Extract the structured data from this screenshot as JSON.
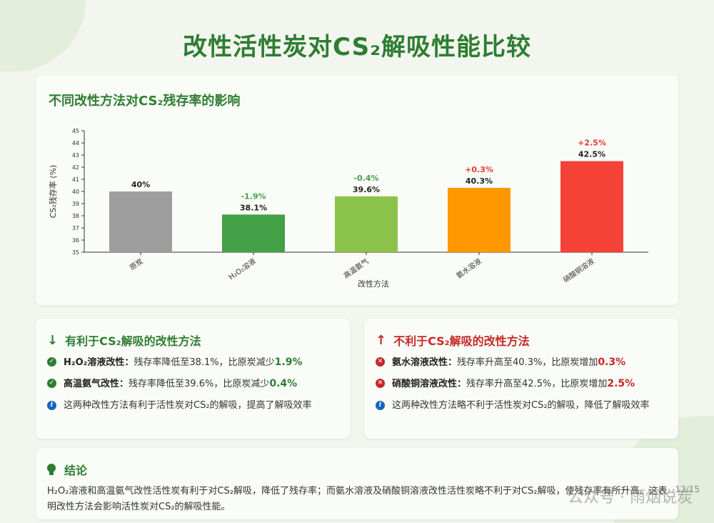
{
  "page_title": "改性活性炭对CS₂解吸性能比较",
  "chart_card": {
    "title": "不同改性方法对CS₂残存率的影响"
  },
  "chart_data": {
    "type": "bar",
    "title": "不同改性方法对CS₂残存率的影响",
    "xlabel": "改性方法",
    "ylabel": "CS₂残存率 (%)",
    "ylim": [
      35,
      45
    ],
    "yticks": [
      "35",
      "36",
      "37",
      "38",
      "39",
      "40",
      "41",
      "42",
      "43",
      "44",
      "45"
    ],
    "categories": [
      "原炭",
      "H₂O₂溶液",
      "高温氨气",
      "氨水溶液",
      "硝酸铜溶液"
    ],
    "values": [
      40,
      38.1,
      39.6,
      40.3,
      42.5
    ],
    "value_labels": [
      "40%",
      "38.1%",
      "39.6%",
      "40.3%",
      "42.5%"
    ],
    "change_labels": [
      "",
      "-1.9%",
      "-0.4%",
      "+0.3%",
      "+2.5%"
    ],
    "colors": [
      "#9e9e9e",
      "#43a047",
      "#8bc34a",
      "#ff9800",
      "#f44336"
    ],
    "change_colors": [
      "",
      "#43a047",
      "#43a047",
      "#e53935",
      "#e53935"
    ],
    "grid": false
  },
  "positive": {
    "heading": "有利于CS₂解吸的改性方法",
    "items": [
      {
        "name": "H₂O₂溶液改性：",
        "text": "残存率降低至38.1%，比原炭减少",
        "pct": "1.9%"
      },
      {
        "name": "高温氨气改性：",
        "text": "残存率降低至39.6%，比原炭减少",
        "pct": "0.4%"
      }
    ],
    "note": "这两种改性方法有利于活性炭对CS₂的解吸，提高了解吸效率"
  },
  "negative": {
    "heading": "不利于CS₂解吸的改性方法",
    "items": [
      {
        "name": "氨水溶液改性：",
        "text": "残存率升高至40.3%，比原炭增加",
        "pct": "0.3%"
      },
      {
        "name": "硝酸铜溶液改性：",
        "text": "残存率升高至42.5%，比原炭增加",
        "pct": "2.5%"
      }
    ],
    "note": "这两种改性方法略不利于活性炭对CS₂的解吸，降低了解吸效率"
  },
  "conclusion": {
    "heading": "结论",
    "text": "H₂O₂溶液和高温氨气改性活性炭有利于对CS₂解吸，降低了残存率；而氨水溶液及硝酸铜溶液改性活性炭略不利于对CS₂解吸，使残存率有所升高。这表明改性方法会影响活性炭对CS₂的解吸性能。"
  },
  "watermark": "公众号 · 雨烟说炭",
  "page_number": "12/15",
  "icons": {
    "down": "arrow-down-icon",
    "up": "arrow-up-icon",
    "check": "check-circle-icon",
    "cross": "x-circle-icon",
    "info": "info-circle-icon",
    "bulb": "lightbulb-icon"
  }
}
